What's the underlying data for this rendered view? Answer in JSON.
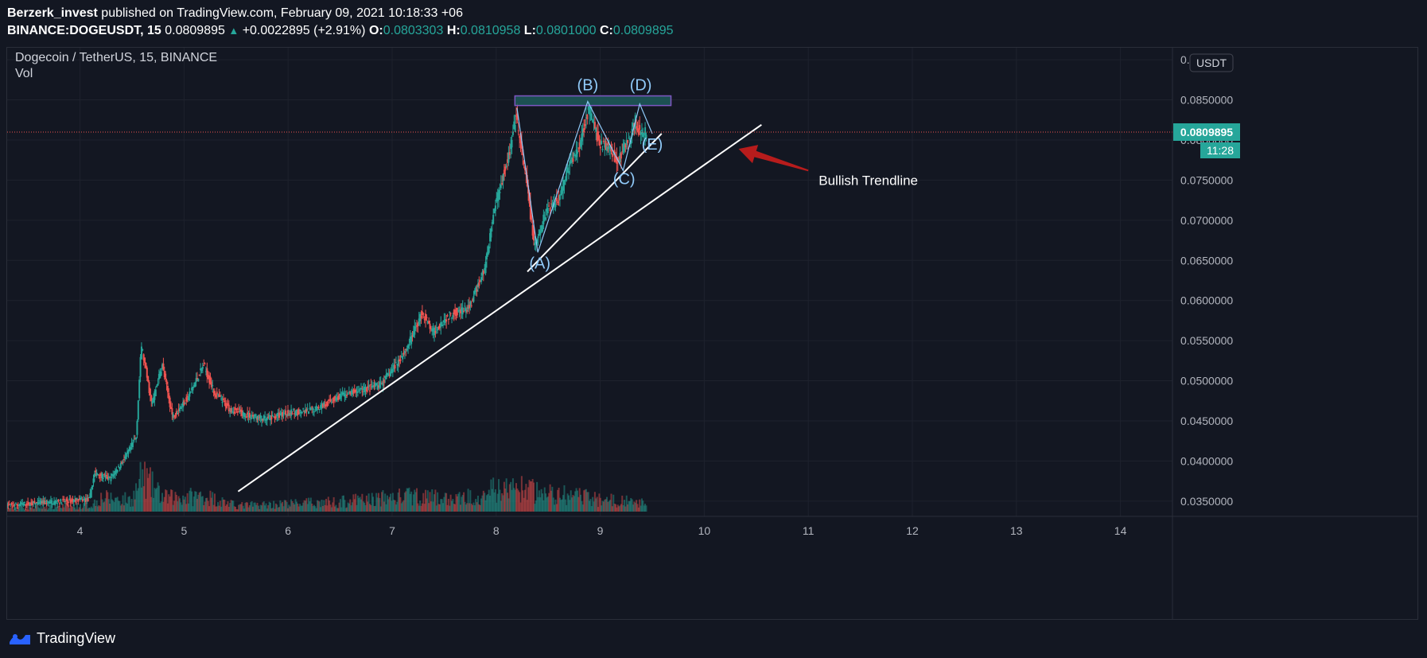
{
  "header": {
    "author": "Berzerk_invest",
    "published_text": " published on TradingView.com, February 09, 2021 10:18:33 +06",
    "symbol": "BINANCE:DOGEUSDT, 15",
    "last_price": "0.0809895",
    "change": "+0.0022895 (+2.91%)",
    "open_label": "O:",
    "open": "0.0803303",
    "high_label": "H:",
    "high": "0.0810958",
    "low_label": "L:",
    "low": "0.0801000",
    "close_label": "C:",
    "close": "0.0809895"
  },
  "legend": {
    "title": "Dogecoin / TetherUS, 15, BINANCE",
    "vol_label": "Vol"
  },
  "footer": {
    "brand": "TradingView"
  },
  "chart_data": {
    "type": "candlestick",
    "x_ticks": [
      "4",
      "5",
      "6",
      "7",
      "8",
      "9",
      "10",
      "11",
      "12",
      "13",
      "14"
    ],
    "x_tick_values": [
      4,
      5,
      6,
      7,
      8,
      9,
      10,
      11,
      12,
      13,
      14
    ],
    "xlim": [
      3.3,
      14.5
    ],
    "y_ticks": [
      "0.0350000",
      "0.0400000",
      "0.0450000",
      "0.0500000",
      "0.0550000",
      "0.0600000",
      "0.0650000",
      "0.0700000",
      "0.0750000",
      "0.0800000",
      "0.0850000",
      "0.0900000"
    ],
    "y_tick_values": [
      0.035,
      0.04,
      0.045,
      0.05,
      0.055,
      0.06,
      0.065,
      0.07,
      0.075,
      0.08,
      0.085,
      0.09
    ],
    "ylim": [
      0.0331,
      0.0915
    ],
    "currency_label": "USDT",
    "current_price_label": "0.0809895",
    "current_price": 0.0809895,
    "countdown": "11:28",
    "price_path": [
      [
        3.3,
        0.0345
      ],
      [
        4.1,
        0.0352
      ],
      [
        4.15,
        0.0385
      ],
      [
        4.3,
        0.0378
      ],
      [
        4.45,
        0.0405
      ],
      [
        4.55,
        0.043
      ],
      [
        4.6,
        0.0545
      ],
      [
        4.7,
        0.047
      ],
      [
        4.8,
        0.052
      ],
      [
        4.9,
        0.0455
      ],
      [
        5.05,
        0.048
      ],
      [
        5.2,
        0.052
      ],
      [
        5.3,
        0.0485
      ],
      [
        5.45,
        0.0465
      ],
      [
        5.6,
        0.0458
      ],
      [
        5.8,
        0.0452
      ],
      [
        6.0,
        0.046
      ],
      [
        6.2,
        0.0462
      ],
      [
        6.35,
        0.047
      ],
      [
        6.5,
        0.048
      ],
      [
        6.7,
        0.0488
      ],
      [
        6.9,
        0.0495
      ],
      [
        7.0,
        0.0512
      ],
      [
        7.15,
        0.054
      ],
      [
        7.3,
        0.0585
      ],
      [
        7.4,
        0.056
      ],
      [
        7.5,
        0.0575
      ],
      [
        7.6,
        0.0585
      ],
      [
        7.75,
        0.059
      ],
      [
        7.9,
        0.064
      ],
      [
        8.0,
        0.072
      ],
      [
        8.15,
        0.079
      ],
      [
        8.2,
        0.083
      ],
      [
        8.3,
        0.075
      ],
      [
        8.38,
        0.0665
      ],
      [
        8.5,
        0.0715
      ],
      [
        8.6,
        0.0725
      ],
      [
        8.7,
        0.0765
      ],
      [
        8.8,
        0.079
      ],
      [
        8.9,
        0.084
      ],
      [
        9.0,
        0.0795
      ],
      [
        9.1,
        0.079
      ],
      [
        9.18,
        0.0772
      ],
      [
        9.25,
        0.0795
      ],
      [
        9.3,
        0.0802
      ],
      [
        9.35,
        0.0825
      ],
      [
        9.4,
        0.0805
      ],
      [
        9.45,
        0.0809895
      ]
    ],
    "volume_path": [
      [
        3.3,
        0.1
      ],
      [
        4.1,
        0.15
      ],
      [
        4.2,
        0.35
      ],
      [
        4.5,
        0.3
      ],
      [
        4.6,
        0.9
      ],
      [
        4.8,
        0.35
      ],
      [
        5.2,
        0.4
      ],
      [
        5.5,
        0.15
      ],
      [
        6.5,
        0.25
      ],
      [
        7.2,
        0.4
      ],
      [
        7.6,
        0.3
      ],
      [
        8.0,
        0.55
      ],
      [
        8.2,
        0.6
      ],
      [
        8.5,
        0.45
      ],
      [
        8.9,
        0.35
      ],
      [
        9.45,
        0.2
      ]
    ],
    "volume_max": 1.0,
    "trendlines": [
      {
        "name": "bullish-trendline",
        "from": [
          5.52,
          0.0362
        ],
        "to": [
          10.55,
          0.0819
        ],
        "color": "#ffffff"
      },
      {
        "name": "inner-trendline",
        "from": [
          8.3,
          0.0636
        ],
        "to": [
          9.59,
          0.0808
        ],
        "color": "#ffffff"
      }
    ],
    "resistance_zone": {
      "x": [
        8.18,
        9.68
      ],
      "y": [
        0.0843,
        0.0855
      ],
      "fill": "#1e5a5a",
      "stroke": "#7e57c2"
    },
    "wave_path": [
      [
        8.2,
        0.084
      ],
      [
        8.4,
        0.066
      ],
      [
        8.88,
        0.0848
      ],
      [
        9.22,
        0.0762
      ],
      [
        9.38,
        0.0845
      ],
      [
        9.5,
        0.0808
      ]
    ],
    "wave_labels": [
      {
        "text": "(A)",
        "x": 8.42,
        "y": 0.064
      },
      {
        "text": "(B)",
        "x": 8.88,
        "y": 0.0862
      },
      {
        "text": "(C)",
        "x": 9.23,
        "y": 0.0745
      },
      {
        "text": "(D)",
        "x": 9.39,
        "y": 0.0862
      },
      {
        "text": "(E)",
        "x": 9.5,
        "y": 0.0788
      }
    ],
    "annotation": {
      "text": "Bullish Trendline",
      "x": 11.1,
      "y": 0.0744
    },
    "arrow": {
      "from": [
        11.0,
        0.0762
      ],
      "to": [
        10.33,
        0.0789
      ],
      "color": "#b71c1c"
    },
    "colors": {
      "up": "#26a69a",
      "down": "#ef5350",
      "grid": "#1e222d",
      "axis_text": "#b2b5be",
      "wave": "#90caf9",
      "price_line": "#ef5350",
      "price_tag": "#26a69a"
    }
  }
}
